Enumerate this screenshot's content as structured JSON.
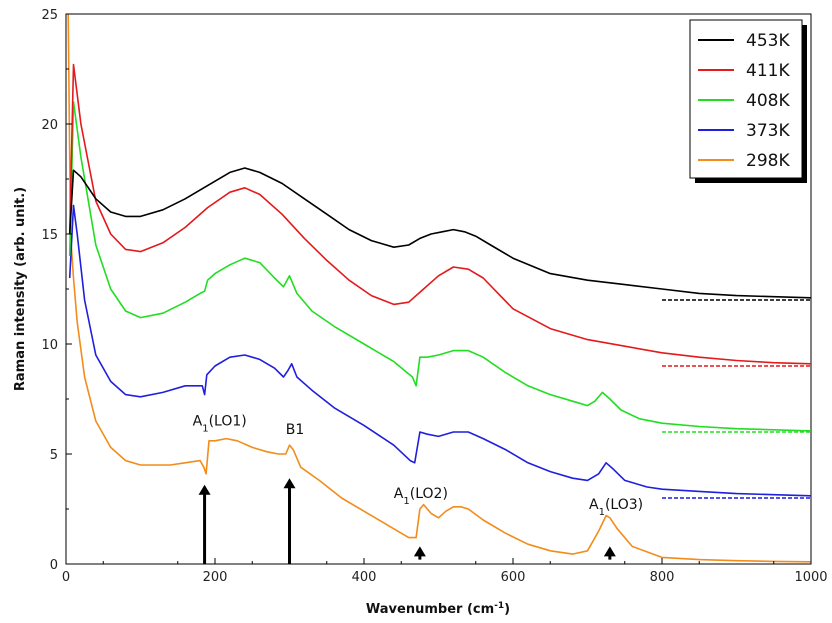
{
  "chart_data": {
    "type": "line",
    "title": "",
    "xlabel": "Wavenumber (cm",
    "xlabel_sup": "-1",
    "xlabel_tail": ")",
    "ylabel": "Raman intensity (arb. unit.)",
    "xlim": [
      0,
      1000
    ],
    "ylim": [
      0,
      25
    ],
    "xticks": [
      0,
      200,
      400,
      600,
      800,
      1000
    ],
    "yticks": [
      0,
      5,
      10,
      15,
      20,
      25
    ],
    "grid": false,
    "legend_position": "top-right",
    "series": [
      {
        "name": "453K",
        "color": "#000000",
        "x": [
          5,
          10,
          20,
          40,
          60,
          80,
          100,
          130,
          160,
          190,
          220,
          240,
          260,
          290,
          320,
          350,
          380,
          410,
          440,
          460,
          475,
          490,
          505,
          520,
          535,
          550,
          570,
          600,
          650,
          700,
          750,
          800,
          850,
          900,
          950,
          1000
        ],
        "y": [
          15.0,
          17.9,
          17.6,
          16.6,
          16.0,
          15.8,
          15.8,
          16.1,
          16.6,
          17.2,
          17.8,
          18.0,
          17.8,
          17.3,
          16.6,
          15.9,
          15.2,
          14.7,
          14.4,
          14.5,
          14.8,
          15.0,
          15.1,
          15.2,
          15.1,
          14.9,
          14.5,
          13.9,
          13.2,
          12.9,
          12.7,
          12.5,
          12.3,
          12.2,
          12.15,
          12.1
        ],
        "baseline": 12.0
      },
      {
        "name": "411K",
        "color": "#e41a1c",
        "x": [
          5,
          10,
          20,
          40,
          60,
          80,
          100,
          130,
          160,
          190,
          220,
          240,
          260,
          290,
          320,
          350,
          380,
          410,
          440,
          460,
          480,
          500,
          520,
          540,
          560,
          580,
          600,
          650,
          700,
          750,
          800,
          850,
          900,
          950,
          1000
        ],
        "y": [
          15.0,
          22.7,
          20.0,
          16.5,
          15.0,
          14.3,
          14.2,
          14.6,
          15.3,
          16.2,
          16.9,
          17.1,
          16.8,
          15.9,
          14.8,
          13.8,
          12.9,
          12.2,
          11.8,
          11.9,
          12.5,
          13.1,
          13.5,
          13.4,
          13.0,
          12.3,
          11.6,
          10.7,
          10.2,
          9.9,
          9.6,
          9.4,
          9.25,
          9.15,
          9.1
        ],
        "baseline": 9.0
      },
      {
        "name": "408K",
        "color": "#22dd22",
        "x": [
          5,
          10,
          20,
          40,
          60,
          80,
          100,
          130,
          160,
          180,
          186,
          190,
          200,
          220,
          240,
          260,
          280,
          292,
          300,
          310,
          330,
          360,
          400,
          440,
          465,
          470,
          475,
          485,
          500,
          520,
          540,
          560,
          590,
          620,
          650,
          680,
          700,
          710,
          720,
          730,
          745,
          770,
          800,
          850,
          900,
          950,
          1000
        ],
        "y": [
          14.0,
          21.0,
          18.5,
          14.5,
          12.5,
          11.5,
          11.2,
          11.4,
          11.9,
          12.3,
          12.4,
          12.9,
          13.2,
          13.6,
          13.9,
          13.7,
          13.0,
          12.6,
          13.1,
          12.3,
          11.5,
          10.8,
          10.0,
          9.2,
          8.5,
          8.1,
          9.4,
          9.4,
          9.5,
          9.7,
          9.7,
          9.4,
          8.7,
          8.1,
          7.7,
          7.4,
          7.2,
          7.4,
          7.8,
          7.5,
          7.0,
          6.6,
          6.4,
          6.25,
          6.15,
          6.1,
          6.05
        ],
        "baseline": 6.0
      },
      {
        "name": "373K",
        "color": "#1f1fdd",
        "x": [
          5,
          10,
          15,
          25,
          40,
          60,
          80,
          100,
          130,
          160,
          183,
          186,
          189,
          200,
          220,
          240,
          260,
          280,
          292,
          298,
          303,
          310,
          330,
          360,
          400,
          440,
          462,
          468,
          475,
          485,
          500,
          520,
          540,
          560,
          590,
          620,
          650,
          680,
          700,
          715,
          725,
          735,
          750,
          780,
          800,
          850,
          900,
          950,
          1000
        ],
        "y": [
          13.0,
          16.3,
          15.0,
          12.0,
          9.5,
          8.3,
          7.7,
          7.6,
          7.8,
          8.1,
          8.1,
          7.7,
          8.6,
          9.0,
          9.4,
          9.5,
          9.3,
          8.9,
          8.5,
          8.8,
          9.1,
          8.5,
          7.9,
          7.1,
          6.3,
          5.4,
          4.7,
          4.6,
          6.0,
          5.9,
          5.8,
          6.0,
          6.0,
          5.7,
          5.2,
          4.6,
          4.2,
          3.9,
          3.8,
          4.1,
          4.6,
          4.3,
          3.8,
          3.5,
          3.4,
          3.3,
          3.2,
          3.15,
          3.1
        ],
        "baseline": 3.0
      },
      {
        "name": "298K",
        "color": "#f28c1a",
        "x": [
          3,
          6,
          10,
          15,
          25,
          40,
          60,
          80,
          100,
          120,
          140,
          160,
          180,
          185,
          188,
          192,
          200,
          215,
          230,
          250,
          270,
          285,
          295,
          300,
          305,
          315,
          340,
          370,
          400,
          430,
          460,
          470,
          475,
          480,
          490,
          500,
          510,
          520,
          530,
          540,
          560,
          590,
          620,
          650,
          680,
          700,
          715,
          725,
          730,
          740,
          760,
          800,
          850,
          900,
          950,
          1000
        ],
        "y": [
          25.0,
          15.0,
          13.0,
          11.0,
          8.5,
          6.5,
          5.3,
          4.7,
          4.5,
          4.5,
          4.5,
          4.6,
          4.7,
          4.4,
          4.1,
          5.6,
          5.6,
          5.7,
          5.6,
          5.3,
          5.1,
          5.0,
          5.0,
          5.4,
          5.2,
          4.4,
          3.8,
          3.0,
          2.4,
          1.8,
          1.2,
          1.2,
          2.5,
          2.7,
          2.3,
          2.1,
          2.4,
          2.6,
          2.6,
          2.5,
          2.0,
          1.4,
          0.9,
          0.6,
          0.45,
          0.6,
          1.5,
          2.2,
          2.1,
          1.6,
          0.8,
          0.3,
          0.2,
          0.15,
          0.12,
          0.1
        ]
      }
    ],
    "arrows": [
      {
        "x": 186,
        "y_base": 0.0,
        "y_tip": 3.6
      },
      {
        "x": 300,
        "y_base": 0.0,
        "y_tip": 3.9
      },
      {
        "x": 475,
        "y_base": 0.2,
        "y_tip": 0.8
      },
      {
        "x": 730,
        "y_base": 0.2,
        "y_tip": 0.8
      }
    ],
    "annotations": [
      {
        "id": "a1lo1",
        "main": "A",
        "sub": "1",
        "tail": "(LO1)",
        "x": 170,
        "y": 6.3
      },
      {
        "id": "b1",
        "main": "B1",
        "sub": "",
        "tail": "",
        "x": 295,
        "y": 5.9
      },
      {
        "id": "a1lo2",
        "main": "A",
        "sub": "1",
        "tail": "(LO2)",
        "x": 440,
        "y": 3.0
      },
      {
        "id": "a1lo3",
        "main": "A",
        "sub": "1",
        "tail": "(LO3)",
        "x": 702,
        "y": 2.5
      }
    ],
    "baseline_x_range": [
      800,
      1000
    ]
  }
}
